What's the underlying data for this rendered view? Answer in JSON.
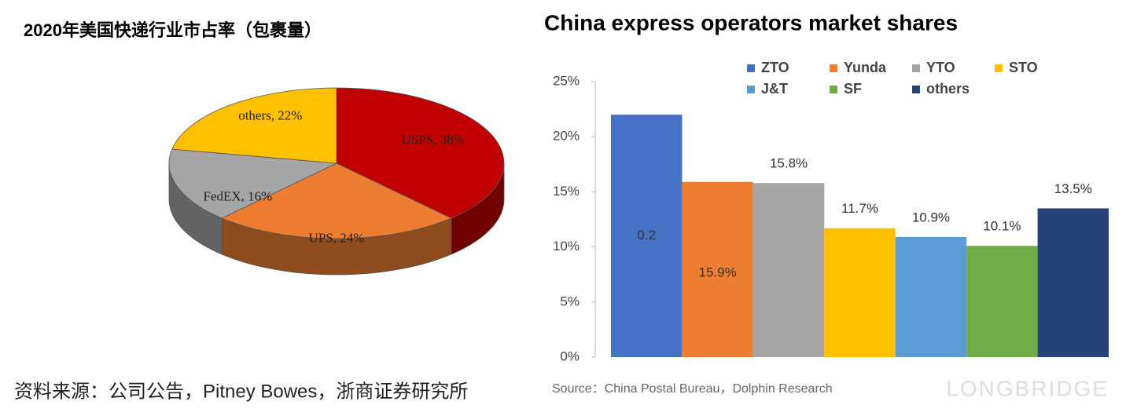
{
  "chart_data": [
    {
      "type": "pie3d",
      "title": "2020年美国快递行业市占率（包裹量）",
      "categories": [
        "USPS",
        "UPS",
        "FedEX",
        "others"
      ],
      "values": [
        38,
        24,
        16,
        22
      ],
      "value_labels": [
        "USPS, 38%",
        "UPS, 24%",
        "FedEX, 16%",
        "others, 22%"
      ],
      "colors": [
        "#c00000",
        "#ed7d31",
        "#a5a5a5",
        "#ffc000"
      ],
      "source": "资料来源：公司公告，Pitney Bowes，浙商证券研究所"
    },
    {
      "type": "bar",
      "title": "China express operators market shares",
      "series": [
        {
          "name": "ZTO",
          "color": "#4472c4",
          "values": [
            22
          ],
          "value_labels": [
            "0.2"
          ]
        },
        {
          "name": "Yunda",
          "color": "#ed7d31",
          "values": [
            15.9
          ],
          "value_labels": [
            "15.9%"
          ]
        },
        {
          "name": "YTO",
          "color": "#a5a5a5",
          "values": [
            15.8
          ],
          "value_labels": [
            "15.8%"
          ]
        },
        {
          "name": "STO",
          "color": "#ffc000",
          "values": [
            11.7
          ],
          "value_labels": [
            "11.7%"
          ]
        },
        {
          "name": "J&T",
          "color": "#5b9bd5",
          "values": [
            10.9
          ],
          "value_labels": [
            "10.9%"
          ]
        },
        {
          "name": "SF",
          "color": "#70ad47",
          "values": [
            10.1
          ],
          "value_labels": [
            "10.1%"
          ]
        },
        {
          "name": "others",
          "color": "#264478",
          "values": [
            13.5
          ],
          "value_labels": [
            "13.5%"
          ]
        }
      ],
      "ylim": [
        0,
        25
      ],
      "yticks": [
        {
          "value": 0,
          "label": "0%"
        },
        {
          "value": 5,
          "label": "5%"
        },
        {
          "value": 10,
          "label": "10%"
        },
        {
          "value": 15,
          "label": "15%"
        },
        {
          "value": 20,
          "label": "20%"
        },
        {
          "value": 25,
          "label": "25%"
        }
      ],
      "source": "Source：China Postal Bureau，Dolphin Research",
      "watermark": "LONGBRIDGE"
    }
  ]
}
